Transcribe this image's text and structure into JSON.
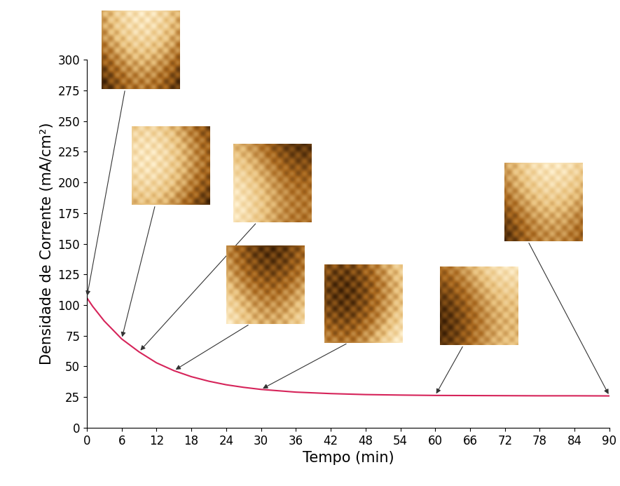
{
  "chart_data": {
    "type": "line",
    "x_label": "Tempo (min)",
    "y_label": "Densidade de Corrente (mA/cm²)",
    "x": [
      0,
      1,
      3,
      6,
      9,
      12,
      15,
      18,
      21,
      24,
      27,
      30,
      36,
      42,
      48,
      54,
      60,
      66,
      72,
      78,
      84,
      90
    ],
    "values": [
      106,
      99,
      87,
      72.4,
      61.8,
      52.9,
      46.5,
      41.6,
      37.9,
      35.0,
      32.9,
      31.2,
      29.0,
      27.8,
      27.0,
      26.6,
      26.3,
      26.2,
      26.1,
      26.0,
      26.0,
      25.9
    ],
    "color": "#d6245a",
    "xlim": [
      0,
      90
    ],
    "xticks": [
      0,
      6,
      12,
      18,
      24,
      30,
      36,
      42,
      48,
      54,
      60,
      66,
      72,
      78,
      84,
      90
    ],
    "ylim": [
      0,
      300
    ],
    "yticks": [
      0,
      25,
      50,
      75,
      100,
      125,
      150,
      175,
      200,
      225,
      250,
      275,
      300
    ],
    "grid": false
  }
}
